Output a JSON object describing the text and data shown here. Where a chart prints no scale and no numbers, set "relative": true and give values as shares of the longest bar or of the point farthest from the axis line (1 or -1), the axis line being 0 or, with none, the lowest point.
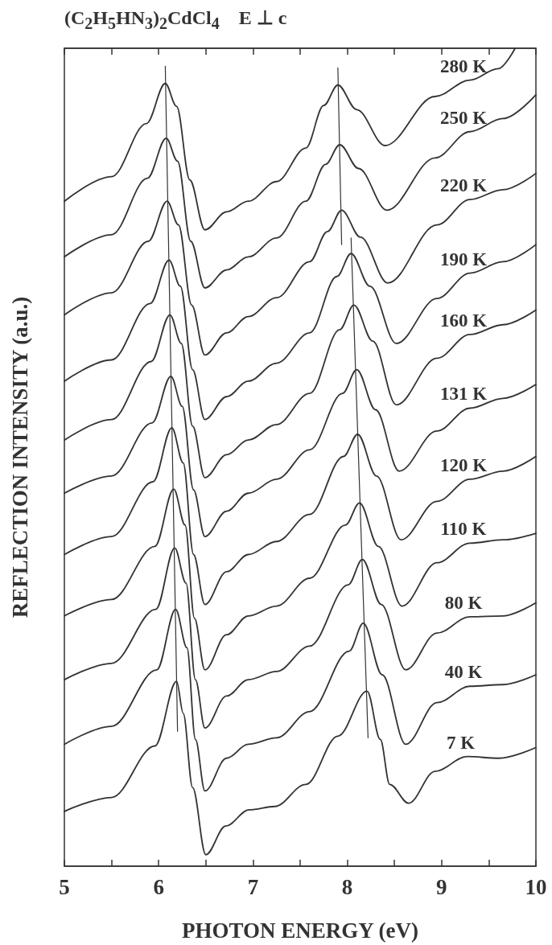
{
  "chart_data": {
    "type": "line",
    "title": "(C$_{2}$H$_{5}$HN$_{3}$)$_{2}$CdCl$_{4}$    E ⊥ c",
    "xlabel": "PHOTON ENERGY (eV)",
    "ylabel": "REFLECTION INTENSITY (a.u.)",
    "relative": true,
    "grid": false,
    "xlim": [
      5,
      10
    ],
    "xticks": [
      5,
      {
        "value": 5.5,
        "label": null
      },
      6,
      {
        "value": 6.5,
        "label": null
      },
      7,
      {
        "value": 7.5,
        "label": null
      },
      8,
      {
        "value": 8.5,
        "label": null
      },
      9,
      {
        "value": 9.5,
        "label": null
      },
      10
    ],
    "series": [
      {
        "name": "280 K",
        "color": "#333333",
        "x": [
          5.0,
          5.5,
          5.87,
          6.07,
          6.19,
          6.33,
          6.49,
          6.72,
          6.95,
          7.25,
          7.56,
          7.75,
          7.9,
          8.1,
          8.4,
          8.93,
          9.3,
          9.6,
          9.78
        ],
        "values": [
          0.813,
          0.843,
          0.908,
          0.957,
          0.929,
          0.839,
          0.778,
          0.8,
          0.813,
          0.837,
          0.878,
          0.93,
          0.955,
          0.925,
          0.881,
          0.941,
          0.961,
          0.975,
          1.0
        ]
      },
      {
        "name": "250 K",
        "color": "#333333",
        "x": [
          5.0,
          5.5,
          5.88,
          6.08,
          6.2,
          6.34,
          6.49,
          6.72,
          6.95,
          7.25,
          7.56,
          7.77,
          7.92,
          8.12,
          8.42,
          8.93,
          9.3,
          9.65,
          10.0
        ],
        "values": [
          0.745,
          0.772,
          0.841,
          0.89,
          0.862,
          0.764,
          0.707,
          0.729,
          0.745,
          0.768,
          0.813,
          0.858,
          0.882,
          0.853,
          0.802,
          0.866,
          0.898,
          0.914,
          0.943
        ]
      },
      {
        "name": "220 K",
        "color": "#333333",
        "x": [
          5.0,
          5.5,
          5.89,
          6.09,
          6.21,
          6.35,
          6.49,
          6.72,
          6.95,
          7.25,
          7.6,
          7.79,
          7.94,
          8.14,
          8.43,
          8.95,
          9.3,
          9.65,
          10.0
        ],
        "values": [
          0.674,
          0.701,
          0.764,
          0.813,
          0.784,
          0.686,
          0.625,
          0.652,
          0.672,
          0.695,
          0.739,
          0.776,
          0.802,
          0.769,
          0.713,
          0.784,
          0.815,
          0.827,
          0.847
        ]
      },
      {
        "name": "190 K",
        "color": "#333333",
        "x": [
          5.0,
          5.5,
          5.91,
          6.11,
          6.23,
          6.36,
          6.49,
          6.72,
          6.95,
          7.25,
          7.6,
          7.89,
          8.04,
          8.24,
          8.52,
          8.95,
          9.3,
          9.65,
          10.0
        ],
        "values": [
          0.593,
          0.619,
          0.688,
          0.741,
          0.709,
          0.607,
          0.546,
          0.574,
          0.593,
          0.615,
          0.652,
          0.721,
          0.749,
          0.709,
          0.639,
          0.694,
          0.725,
          0.739,
          0.76
        ]
      },
      {
        "name": "160 K",
        "color": "#333333",
        "x": [
          5.0,
          5.5,
          5.92,
          6.12,
          6.24,
          6.36,
          6.49,
          6.72,
          6.95,
          7.25,
          7.6,
          7.92,
          8.07,
          8.27,
          8.52,
          8.95,
          9.3,
          9.65,
          10.0
        ],
        "values": [
          0.521,
          0.546,
          0.617,
          0.674,
          0.639,
          0.538,
          0.475,
          0.503,
          0.521,
          0.54,
          0.578,
          0.656,
          0.686,
          0.642,
          0.564,
          0.621,
          0.65,
          0.662,
          0.68
        ]
      },
      {
        "name": "131 K",
        "color": "#333333",
        "x": [
          5.0,
          5.5,
          5.93,
          6.13,
          6.25,
          6.37,
          6.49,
          6.72,
          6.95,
          7.25,
          7.6,
          7.95,
          8.1,
          8.3,
          8.55,
          8.95,
          9.3,
          9.65,
          10.0
        ],
        "values": [
          0.456,
          0.477,
          0.542,
          0.599,
          0.562,
          0.46,
          0.403,
          0.434,
          0.456,
          0.473,
          0.509,
          0.578,
          0.607,
          0.558,
          0.483,
          0.532,
          0.56,
          0.572,
          0.589
        ]
      },
      {
        "name": "120 K",
        "color": "#333333",
        "x": [
          5.0,
          5.5,
          5.94,
          6.14,
          6.26,
          6.37,
          6.49,
          6.72,
          6.95,
          7.25,
          7.6,
          7.96,
          8.11,
          8.31,
          8.57,
          8.95,
          9.3,
          9.65,
          10.0
        ],
        "values": [
          0.381,
          0.403,
          0.47,
          0.536,
          0.493,
          0.381,
          0.32,
          0.36,
          0.381,
          0.397,
          0.43,
          0.501,
          0.528,
          0.477,
          0.399,
          0.446,
          0.473,
          0.483,
          0.501
        ]
      },
      {
        "name": "110 K",
        "color": "#333333",
        "x": [
          5.0,
          5.5,
          5.96,
          6.16,
          6.28,
          6.38,
          6.49,
          6.72,
          6.95,
          7.25,
          7.6,
          7.98,
          8.13,
          8.33,
          8.58,
          8.95,
          9.3,
          9.65,
          10.0
        ],
        "values": [
          0.306,
          0.326,
          0.391,
          0.461,
          0.417,
          0.303,
          0.24,
          0.283,
          0.306,
          0.318,
          0.352,
          0.417,
          0.444,
          0.391,
          0.318,
          0.371,
          0.395,
          0.399,
          0.407
        ]
      },
      {
        "name": "80 K",
        "color": "#333333",
        "x": [
          5.0,
          5.5,
          5.97,
          6.17,
          6.29,
          6.39,
          6.49,
          6.72,
          6.95,
          7.25,
          7.6,
          8.01,
          8.16,
          8.36,
          8.62,
          8.95,
          9.3,
          9.65,
          10.0
        ],
        "values": [
          0.228,
          0.248,
          0.314,
          0.389,
          0.346,
          0.228,
          0.169,
          0.208,
          0.228,
          0.238,
          0.269,
          0.344,
          0.375,
          0.32,
          0.24,
          0.285,
          0.305,
          0.306,
          0.322
        ]
      },
      {
        "name": "40 K",
        "color": "#333333",
        "x": [
          5.0,
          5.5,
          5.98,
          6.18,
          6.3,
          6.39,
          6.49,
          6.72,
          6.95,
          7.25,
          7.6,
          8.02,
          8.17,
          8.37,
          8.62,
          8.95,
          9.3,
          9.65,
          10.0
        ],
        "values": [
          0.149,
          0.171,
          0.24,
          0.314,
          0.267,
          0.155,
          0.092,
          0.132,
          0.149,
          0.157,
          0.189,
          0.263,
          0.297,
          0.234,
          0.149,
          0.2,
          0.22,
          0.222,
          0.234
        ]
      },
      {
        "name": "7 K",
        "color": "#333333",
        "x": [
          5.0,
          5.5,
          5.96,
          6.19,
          6.26,
          6.36,
          6.5,
          6.71,
          6.96,
          7.23,
          7.56,
          7.9,
          8.21,
          8.35,
          8.45,
          8.65,
          8.93,
          9.27,
          9.61,
          10.0
        ],
        "values": [
          0.067,
          0.084,
          0.147,
          0.226,
          0.187,
          0.096,
          0.014,
          0.049,
          0.069,
          0.073,
          0.1,
          0.159,
          0.214,
          0.155,
          0.1,
          0.077,
          0.116,
          0.134,
          0.132,
          0.145
        ]
      },
      {
        "color": "#333333",
        "x": [
          6.07,
          6.2
        ],
        "values": [
          0.978,
          0.165
        ]
      },
      {
        "color": "#333333",
        "x": [
          7.9,
          7.94
        ],
        "values": [
          0.976,
          0.76
        ]
      },
      {
        "color": "#333333",
        "x": [
          8.04,
          8.22
        ],
        "values": [
          0.768,
          0.157
        ]
      }
    ]
  }
}
